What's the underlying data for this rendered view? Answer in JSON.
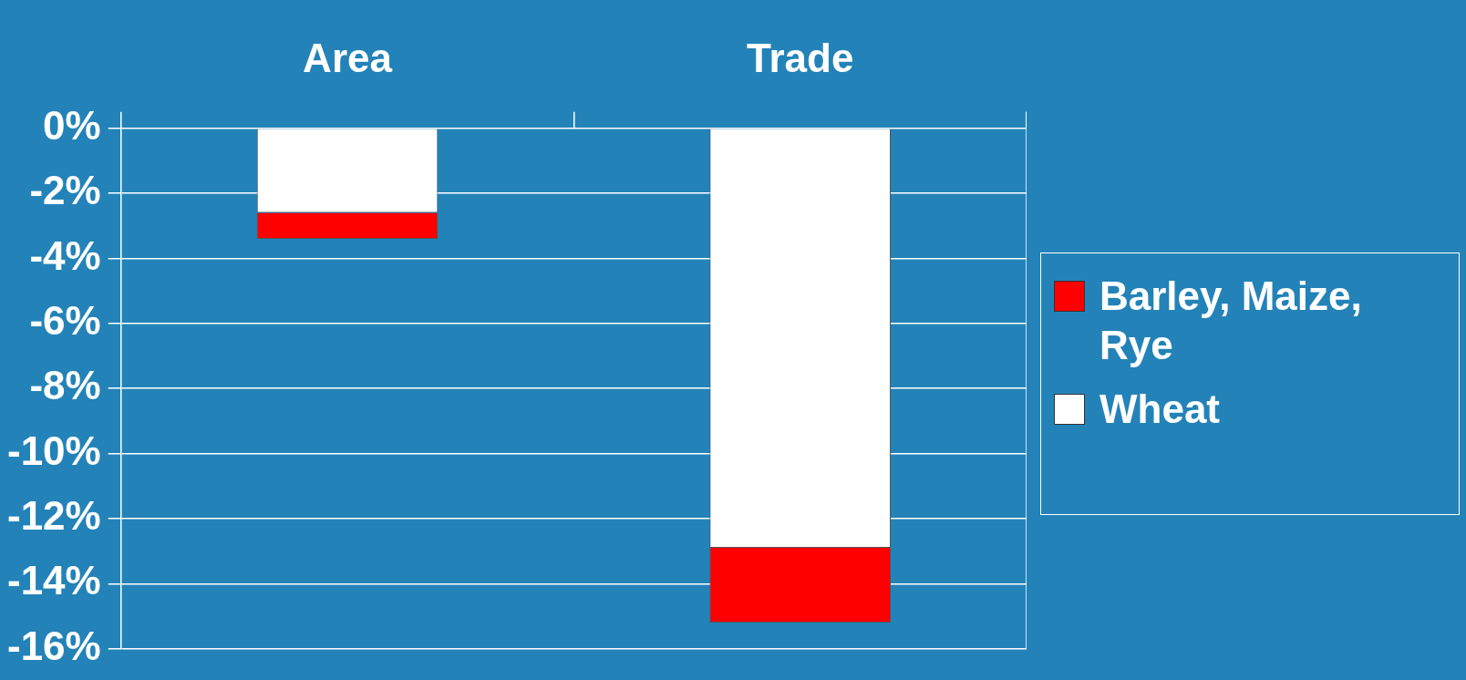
{
  "chart_data": {
    "type": "bar",
    "stacked": true,
    "categories": [
      "Area",
      "Trade"
    ],
    "series": [
      {
        "name": "Wheat",
        "color": "#ffffff",
        "values": [
          -2.6,
          -12.9
        ]
      },
      {
        "name": "Barley, Maize, Rye",
        "color": "#ff0000",
        "values": [
          -0.8,
          -2.3
        ]
      }
    ],
    "ylim": [
      -16,
      0
    ],
    "yticks": [
      {
        "value": 0,
        "label": "0%"
      },
      {
        "value": -2,
        "label": "-2%"
      },
      {
        "value": -4,
        "label": "-4%"
      },
      {
        "value": -6,
        "label": "-6%"
      },
      {
        "value": -8,
        "label": "-8%"
      },
      {
        "value": -10,
        "label": "-10%"
      },
      {
        "value": -12,
        "label": "-12%"
      },
      {
        "value": -14,
        "label": "-14%"
      },
      {
        "value": -16,
        "label": "-16%"
      }
    ],
    "grid": "y",
    "legend": "right"
  }
}
